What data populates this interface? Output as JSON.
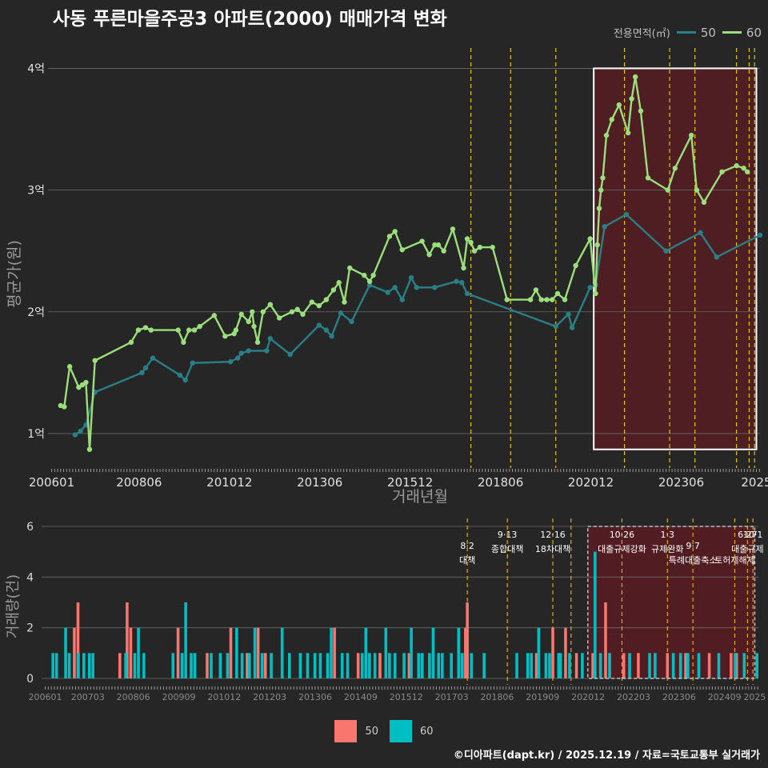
{
  "title": "사동 푸른마을주공3 아파트(2000) 매매가격 변화",
  "legend": {
    "title": "전용면적(㎡)",
    "items": [
      {
        "label": "50",
        "color": "#2a7f86"
      },
      {
        "label": "60",
        "color": "#9bde7c"
      }
    ]
  },
  "footer": "©디아파트(dapt.kr) / 2025.12.19 / 자료=국토교통부 실거래가",
  "colors": {
    "s50_line": "#2a7f86",
    "s60_line": "#9bde7c",
    "bar50": "#f8766d",
    "bar60": "#00bfc4",
    "highlight": "#5c1c22",
    "policy": "#e6c200"
  },
  "chart_data": [
    {
      "type": "line",
      "title": "사동 푸른마을주공3 아파트(2000) 매매가격 변화",
      "xlabel": "거래년월",
      "ylabel": "평균가(원)",
      "x_ticks": [
        "200601",
        "200806",
        "201012",
        "201306",
        "201512",
        "201806",
        "202012",
        "202306",
        "2025"
      ],
      "x_tick_values": [
        2006.0,
        2008.42,
        2010.92,
        2013.42,
        2015.92,
        2018.42,
        2020.92,
        2023.42,
        2025.5
      ],
      "y_ticks": [
        "1억",
        "2억",
        "3억",
        "4억"
      ],
      "y_tick_values": [
        1,
        2,
        3,
        4
      ],
      "xlim": [
        2005.9,
        2025.6
      ],
      "ylim": [
        0.75,
        4.2
      ],
      "highlight_range": [
        2021.0,
        2025.5
      ],
      "policy_lines": [
        2017.6,
        2018.7,
        2019.95,
        2021.85,
        2023.1,
        2023.8,
        2024.95,
        2025.3,
        2025.45
      ],
      "series": [
        {
          "name": "50",
          "x": [
            2006.65,
            2006.8,
            2006.95,
            2007.2,
            2008.5,
            2008.6,
            2008.8,
            2009.55,
            2009.7,
            2009.9,
            2010.95,
            2011.15,
            2011.25,
            2011.45,
            2011.95,
            2012.05,
            2012.6,
            2013.4,
            2013.6,
            2013.75,
            2014.0,
            2014.3,
            2014.8,
            2015.3,
            2015.5,
            2015.7,
            2015.95,
            2016.1,
            2016.6,
            2017.2,
            2017.35,
            2017.5,
            2019.95,
            2020.3,
            2020.4,
            2020.9,
            2021.05,
            2021.3,
            2021.9,
            2023.0,
            2023.95,
            2024.4,
            2025.6
          ],
          "y": [
            0.99,
            1.02,
            1.07,
            1.34,
            1.5,
            1.54,
            1.62,
            1.48,
            1.44,
            1.58,
            1.59,
            1.62,
            1.66,
            1.68,
            1.68,
            1.78,
            1.65,
            1.89,
            1.85,
            1.8,
            1.99,
            1.92,
            2.22,
            2.16,
            2.2,
            2.1,
            2.28,
            2.2,
            2.2,
            2.25,
            2.24,
            2.15,
            1.88,
            1.98,
            1.87,
            2.2,
            2.22,
            2.7,
            2.8,
            2.5,
            2.65,
            2.45,
            2.63
          ]
        },
        {
          "name": "60",
          "x": [
            2006.25,
            2006.35,
            2006.5,
            2006.75,
            2006.85,
            2006.95,
            2007.05,
            2007.2,
            2008.2,
            2008.4,
            2008.6,
            2008.75,
            2009.5,
            2009.65,
            2009.8,
            2009.95,
            2010.1,
            2010.5,
            2010.8,
            2011.05,
            2011.1,
            2011.25,
            2011.45,
            2011.55,
            2011.6,
            2011.7,
            2011.85,
            2012.05,
            2012.3,
            2012.65,
            2012.8,
            2012.95,
            2013.2,
            2013.4,
            2013.6,
            2013.8,
            2013.95,
            2014.1,
            2014.25,
            2014.65,
            2014.8,
            2014.9,
            2015.35,
            2015.5,
            2015.7,
            2016.25,
            2016.45,
            2016.6,
            2016.7,
            2016.85,
            2017.1,
            2017.4,
            2017.5,
            2017.6,
            2017.7,
            2017.85,
            2018.2,
            2018.6,
            2019.25,
            2019.4,
            2019.55,
            2019.7,
            2019.85,
            2020.0,
            2020.2,
            2020.5,
            2020.9,
            2021.05,
            2021.1,
            2021.15,
            2021.2,
            2021.25,
            2021.35,
            2021.5,
            2021.7,
            2021.95,
            2022.05,
            2022.15,
            2022.3,
            2022.5,
            2023.05,
            2023.25,
            2023.7,
            2023.85,
            2024.05,
            2024.55,
            2024.95,
            2025.15,
            2025.25
          ],
          "y": [
            1.23,
            1.22,
            1.55,
            1.38,
            1.4,
            1.42,
            0.87,
            1.6,
            1.75,
            1.85,
            1.87,
            1.85,
            1.85,
            1.75,
            1.85,
            1.85,
            1.88,
            1.97,
            1.8,
            1.82,
            1.85,
            1.98,
            1.92,
            2.0,
            1.88,
            1.75,
            2.0,
            2.06,
            1.95,
            2.0,
            2.02,
            1.98,
            2.08,
            2.05,
            2.1,
            2.18,
            2.24,
            2.08,
            2.36,
            2.3,
            2.25,
            2.3,
            2.62,
            2.66,
            2.51,
            2.58,
            2.47,
            2.55,
            2.55,
            2.5,
            2.68,
            2.36,
            2.6,
            2.57,
            2.5,
            2.53,
            2.53,
            2.1,
            2.1,
            2.18,
            2.1,
            2.1,
            2.1,
            2.15,
            2.1,
            2.38,
            2.6,
            2.15,
            2.55,
            2.85,
            3.0,
            3.1,
            3.45,
            3.58,
            3.7,
            3.47,
            3.75,
            3.93,
            3.65,
            3.1,
            3.0,
            3.18,
            3.45,
            3.0,
            2.9,
            3.15,
            3.2,
            3.18,
            3.15
          ]
        }
      ]
    },
    {
      "type": "bar",
      "title": "",
      "xlabel": "",
      "ylabel": "거래량(건)",
      "y_ticks": [
        "0",
        "2",
        "4",
        "6"
      ],
      "y_tick_values": [
        0,
        2,
        4,
        6
      ],
      "ylim": [
        0,
        6
      ],
      "x_ticks": [
        "200601",
        "200703",
        "200806",
        "200909",
        "201012",
        "201203",
        "201306",
        "201409",
        "201512",
        "201703",
        "201806",
        "201909",
        "202012",
        "202203",
        "202306",
        "202409",
        "2025"
      ],
      "x_tick_values": [
        2006.0,
        2007.17,
        2008.42,
        2009.67,
        2010.92,
        2012.17,
        2013.42,
        2014.67,
        2015.92,
        2017.17,
        2018.42,
        2019.67,
        2020.92,
        2022.17,
        2023.42,
        2024.67,
        2025.5
      ],
      "highlight_range": [
        2021.0,
        2025.5
      ],
      "policy_lines": [
        2017.6,
        2018.7,
        2019.95,
        2020.45,
        2021.85,
        2023.1,
        2023.8,
        2024.95,
        2025.3,
        2025.45
      ],
      "annotations": [
        {
          "date": "8·2",
          "text": "대책",
          "x": 2017.6,
          "row": 1
        },
        {
          "date": "9·13",
          "text": "종합대책",
          "x": 2018.7,
          "row": 0
        },
        {
          "date": "12·16",
          "text": "18차대책",
          "x": 2019.95,
          "row": 0
        },
        {
          "date": "10·26",
          "text": "대출규제강화",
          "x": 2021.85,
          "row": 0
        },
        {
          "date": "1·3",
          "text": "규제완화",
          "x": 2023.1,
          "row": 0
        },
        {
          "date": "9·7",
          "text": "특례대출축소",
          "x": 2023.8,
          "row": 1
        },
        {
          "date": "",
          "text": "토허제해제",
          "x": 2024.95,
          "row": 1
        },
        {
          "date": "6·27",
          "text": "대출규제",
          "x": 2025.3,
          "row": 0
        },
        {
          "date": "10·1",
          "text": "",
          "x": 2025.45,
          "row": 0
        }
      ],
      "series": [
        {
          "name": "50",
          "x": [
            2006.8,
            2006.9,
            2008.05,
            2008.25,
            2008.35,
            2009.65,
            2010.45,
            2011.1,
            2011.55,
            2011.85,
            2012.05,
            2013.95,
            2014.6,
            2015.2,
            2016.0,
            2017.55,
            2017.6,
            2019.5,
            2019.95,
            2020.3,
            2020.6,
            2021.05,
            2021.4,
            2021.9,
            2022.3,
            2023.1,
            2023.6,
            2024.25,
            2024.85,
            2025.0
          ],
          "values": [
            2,
            3,
            1,
            3,
            2,
            2,
            1,
            2,
            1,
            2,
            1,
            2,
            1,
            1,
            1,
            2,
            3,
            1,
            2,
            2,
            1,
            1,
            3,
            1,
            1,
            1,
            1,
            1,
            1,
            1
          ]
        },
        {
          "name": "60",
          "x": [
            2006.2,
            2006.3,
            2006.55,
            2006.65,
            2006.9,
            2007.05,
            2007.2,
            2007.3,
            2008.2,
            2008.45,
            2008.55,
            2008.7,
            2009.5,
            2009.75,
            2009.85,
            2010.0,
            2010.1,
            2010.55,
            2010.8,
            2011.0,
            2011.25,
            2011.4,
            2011.6,
            2011.75,
            2011.95,
            2012.2,
            2012.5,
            2012.7,
            2013.0,
            2013.2,
            2013.4,
            2013.55,
            2013.75,
            2013.85,
            2014.15,
            2014.3,
            2014.7,
            2014.8,
            2014.9,
            2015.05,
            2015.35,
            2015.45,
            2015.6,
            2015.85,
            2016.05,
            2016.25,
            2016.35,
            2016.55,
            2016.65,
            2016.8,
            2016.9,
            2017.15,
            2017.35,
            2017.45,
            2017.7,
            2018.05,
            2018.95,
            2019.25,
            2019.35,
            2019.55,
            2019.75,
            2019.85,
            2020.1,
            2020.15,
            2020.4,
            2020.75,
            2021.1,
            2021.25,
            2021.5,
            2022.05,
            2022.6,
            2022.75,
            2023.25,
            2023.45,
            2023.65,
            2023.95,
            2024.5,
            2024.95,
            2025.2,
            2025.55
          ],
          "values": [
            1,
            1,
            2,
            1,
            1,
            1,
            1,
            1,
            1,
            1,
            2,
            1,
            1,
            1,
            3,
            1,
            1,
            1,
            1,
            1,
            2,
            1,
            1,
            2,
            1,
            1,
            2,
            1,
            1,
            1,
            1,
            1,
            1,
            2,
            1,
            1,
            1,
            2,
            1,
            1,
            2,
            1,
            1,
            1,
            2,
            1,
            1,
            1,
            2,
            1,
            1,
            1,
            2,
            1,
            1,
            1,
            1,
            1,
            1,
            2,
            1,
            1,
            1,
            1,
            1,
            1,
            5,
            1,
            1,
            1,
            1,
            1,
            1,
            1,
            1,
            1,
            1,
            1,
            1,
            1
          ]
        }
      ]
    }
  ]
}
